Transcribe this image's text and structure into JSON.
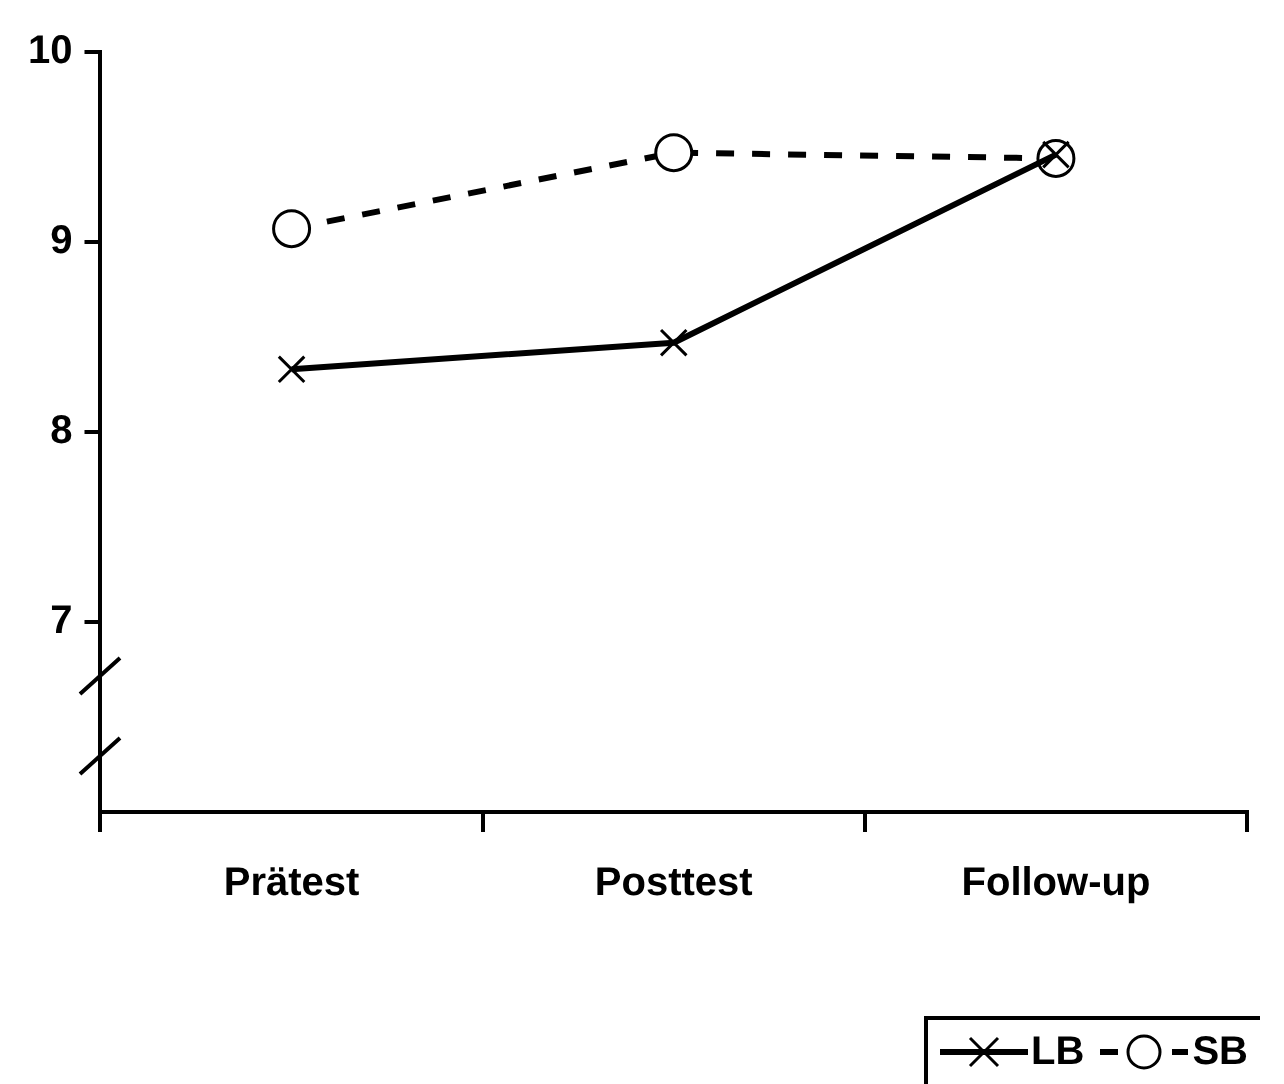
{
  "chart_data": {
    "type": "line",
    "categories": [
      "Prätest",
      "Posttest",
      "Follow-up"
    ],
    "series": [
      {
        "name": "LB",
        "color": "#000000",
        "values": [
          8.33,
          8.47,
          9.46
        ],
        "marker": "cross",
        "line_style": "solid"
      },
      {
        "name": "SB",
        "color": "#000000",
        "values": [
          9.07,
          9.47,
          9.44
        ],
        "marker": "circle",
        "line_style": "dashed"
      }
    ],
    "ylim": [
      6,
      10
    ],
    "yticks": [
      7,
      8,
      9,
      10
    ],
    "grid": false,
    "legend": "bottom right"
  }
}
